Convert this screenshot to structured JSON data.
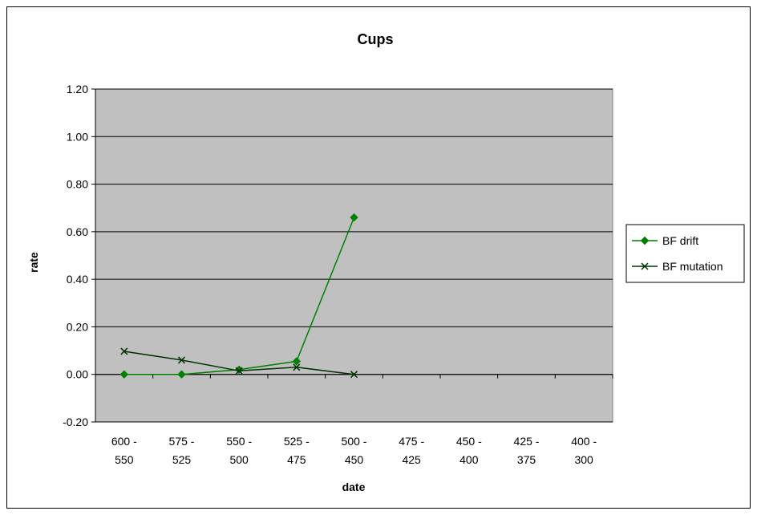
{
  "chart_data": {
    "type": "line",
    "title": "Cups",
    "xlabel": "date",
    "ylabel": "rate",
    "categories": [
      [
        "600 -",
        "550"
      ],
      [
        "575 -",
        "525"
      ],
      [
        "550 -",
        "500"
      ],
      [
        "525 -",
        "475"
      ],
      [
        "500 -",
        "450"
      ],
      [
        "475 -",
        "425"
      ],
      [
        "450 -",
        "400"
      ],
      [
        "425 -",
        "375"
      ],
      [
        "400 -",
        "300"
      ]
    ],
    "ylim": [
      -0.2,
      1.2
    ],
    "yticks": [
      -0.2,
      0.0,
      0.2,
      0.4,
      0.6,
      0.8,
      1.0,
      1.2
    ],
    "ytick_labels": [
      "-0.20",
      "0.00",
      "0.20",
      "0.40",
      "0.60",
      "0.80",
      "1.00",
      "1.20"
    ],
    "grid": true,
    "plot_background": "#c0c0c0",
    "legend_position": "right",
    "series": [
      {
        "name": "BF drift",
        "color": "#008000",
        "marker": "diamond",
        "values": [
          0.0,
          0.0,
          0.02,
          0.055,
          0.66,
          null,
          null,
          null,
          null
        ]
      },
      {
        "name": "BF mutation",
        "color": "#003300",
        "marker": "x",
        "values": [
          0.097,
          0.06,
          0.015,
          0.03,
          0.0,
          null,
          null,
          null,
          null
        ]
      }
    ]
  }
}
